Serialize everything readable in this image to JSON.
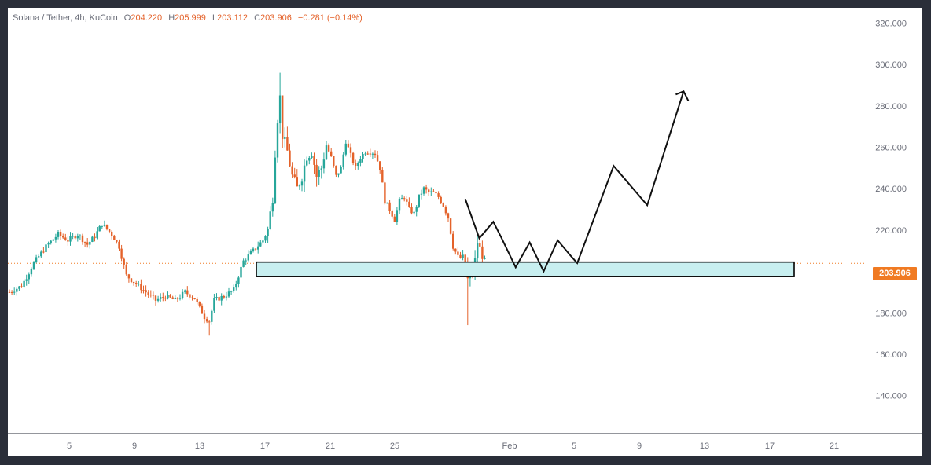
{
  "symbol": {
    "title": "Solana / Tether, 4h, KuCoin",
    "open_label": "O",
    "open": "204.220",
    "high_label": "H",
    "high": "205.999",
    "low_label": "L",
    "low": "203.112",
    "close_label": "C",
    "close": "203.906",
    "change": "−0.281 (−0.14%)"
  },
  "last_price_label": "203.906",
  "colors": {
    "up": "#26a69a",
    "down": "#e4622a",
    "zone_fill": "#c8eff0",
    "projection": "#111111",
    "price_line": "#f07a22"
  },
  "chart_data": {
    "type": "candlestick",
    "y_ticks": [
      "320.000",
      "300.000",
      "280.000",
      "260.000",
      "240.000",
      "220.000",
      "200.000",
      "180.000",
      "160.000",
      "140.000"
    ],
    "ylim": [
      130,
      327
    ],
    "x_ticks": [
      "5",
      "9",
      "13",
      "17",
      "21",
      "25",
      "Feb",
      "5",
      "9",
      "13",
      "17",
      "21"
    ],
    "last_price": 203.906,
    "path": [
      [
        0,
        190
      ],
      [
        5,
        193
      ],
      [
        10,
        204
      ],
      [
        15,
        212
      ],
      [
        20,
        218
      ],
      [
        24,
        215
      ],
      [
        28,
        218
      ],
      [
        32,
        213
      ],
      [
        35,
        217
      ],
      [
        38,
        223
      ],
      [
        42,
        218
      ],
      [
        45,
        212
      ],
      [
        48,
        198
      ],
      [
        52,
        194
      ],
      [
        56,
        190
      ],
      [
        60,
        186
      ],
      [
        64,
        188
      ],
      [
        68,
        186
      ],
      [
        72,
        190
      ],
      [
        76,
        187
      ],
      [
        80,
        178
      ],
      [
        82,
        176
      ],
      [
        84,
        186
      ],
      [
        88,
        188
      ],
      [
        92,
        191
      ],
      [
        96,
        205
      ],
      [
        100,
        210
      ],
      [
        104,
        215
      ],
      [
        106,
        220
      ],
      [
        108,
        236
      ],
      [
        109,
        258
      ],
      [
        110,
        274
      ],
      [
        111,
        284
      ],
      [
        112,
        266
      ],
      [
        114,
        258
      ],
      [
        116,
        246
      ],
      [
        118,
        240
      ],
      [
        120,
        246
      ],
      [
        122,
        256
      ],
      [
        124,
        258
      ],
      [
        126,
        246
      ],
      [
        128,
        250
      ],
      [
        130,
        261
      ],
      [
        132,
        255
      ],
      [
        134,
        246
      ],
      [
        136,
        250
      ],
      [
        138,
        263
      ],
      [
        140,
        256
      ],
      [
        142,
        250
      ],
      [
        144,
        255
      ],
      [
        146,
        258
      ],
      [
        148,
        258
      ],
      [
        150,
        257
      ],
      [
        152,
        250
      ],
      [
        154,
        234
      ],
      [
        156,
        230
      ],
      [
        158,
        225
      ],
      [
        160,
        234
      ],
      [
        162,
        236
      ],
      [
        164,
        230
      ],
      [
        166,
        228
      ],
      [
        168,
        236
      ],
      [
        170,
        240
      ],
      [
        172,
        238
      ],
      [
        174,
        238
      ],
      [
        176,
        236
      ],
      [
        178,
        232
      ],
      [
        180,
        226
      ],
      [
        182,
        212
      ],
      [
        184,
        207
      ],
      [
        186,
        206
      ],
      [
        187,
        204
      ],
      [
        188,
        196
      ],
      [
        190,
        200
      ],
      [
        191,
        205
      ],
      [
        192,
        214
      ],
      [
        194,
        208
      ],
      [
        195,
        204
      ]
    ],
    "support_zone": {
      "from_bar": 55,
      "to_bar": 217,
      "low": 197.5,
      "high": 204.5
    },
    "projection_path": [
      [
        162,
        235
      ],
      [
        167,
        216
      ],
      [
        172,
        224
      ],
      [
        175,
        216
      ],
      [
        180,
        202
      ],
      [
        185,
        214
      ],
      [
        190,
        200
      ],
      [
        195,
        215
      ],
      [
        200,
        207
      ],
      [
        202,
        204
      ],
      [
        215,
        251
      ],
      [
        227,
        232
      ],
      [
        240,
        287
      ]
    ],
    "projection_end_arrow": true
  }
}
